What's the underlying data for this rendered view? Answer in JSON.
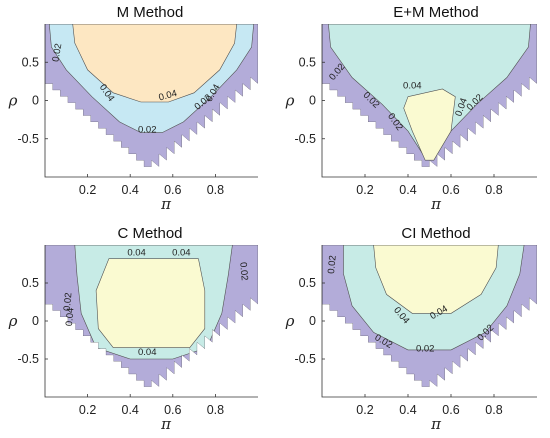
{
  "colors": {
    "level_0_02": "#b3acd9",
    "level_0_04": "#c6e8f3",
    "level_0_04_alt": "#c7ebe6",
    "level_above_0_04": "#fde7c2",
    "level_above_0_04_alt": "#fafad1",
    "contour_line": "#505050"
  },
  "chart_data": [
    {
      "type": "heatmap",
      "title": "M Method",
      "xlabel": "π",
      "ylabel": "ρ",
      "xlim": [
        0,
        1
      ],
      "ylim": [
        -1,
        1
      ],
      "xticks": [
        0.2,
        0.4,
        0.6,
        0.8
      ],
      "yticks": [
        0.5,
        0,
        -0.5
      ],
      "contour_levels": [
        0.02,
        0.04
      ],
      "contour_labels": [
        "0.02",
        "0.04",
        "0.04",
        "0.04",
        "0.02",
        "0.02"
      ],
      "regions": [
        "level_0_02",
        "level_0_04",
        "level_above_0_04"
      ]
    },
    {
      "type": "heatmap",
      "title": "E+M Method",
      "xlabel": "π",
      "ylabel": "ρ",
      "xlim": [
        0,
        1
      ],
      "ylim": [
        -1,
        1
      ],
      "xticks": [
        0.2,
        0.4,
        0.6,
        0.8
      ],
      "yticks": [
        0.5,
        0,
        -0.5
      ],
      "contour_levels": [
        0.02,
        0.04
      ],
      "contour_labels": [
        "0.02",
        "0.02",
        "0.04",
        "0.02",
        "0.04",
        "0.02"
      ],
      "regions": [
        "level_0_02",
        "level_0_04_alt",
        "level_above_0_04_alt"
      ]
    },
    {
      "type": "heatmap",
      "title": "C Method",
      "xlabel": "π",
      "ylabel": "ρ",
      "xlim": [
        0,
        1
      ],
      "ylim": [
        -1,
        1
      ],
      "xticks": [
        0.2,
        0.4,
        0.6,
        0.8
      ],
      "yticks": [
        0.5,
        0,
        -0.5
      ],
      "contour_levels": [
        0.02,
        0.04
      ],
      "contour_labels": [
        "0.04",
        "0.04",
        "0.02",
        "0.02",
        "0.04",
        "0.04"
      ],
      "regions": [
        "level_0_02",
        "level_0_04_alt",
        "level_above_0_04_alt"
      ]
    },
    {
      "type": "heatmap",
      "title": "CI Method",
      "xlabel": "π",
      "ylabel": "ρ",
      "xlim": [
        0,
        1
      ],
      "ylim": [
        -1,
        1
      ],
      "xticks": [
        0.2,
        0.4,
        0.6,
        0.8
      ],
      "yticks": [
        0.5,
        0,
        -0.5
      ],
      "contour_levels": [
        0.02,
        0.04
      ],
      "contour_labels": [
        "0.02",
        "0.04",
        "0.04",
        "0.02",
        "0.02",
        "0.02"
      ],
      "regions": [
        "level_0_02",
        "level_0_04_alt",
        "level_above_0_04_alt"
      ]
    }
  ]
}
